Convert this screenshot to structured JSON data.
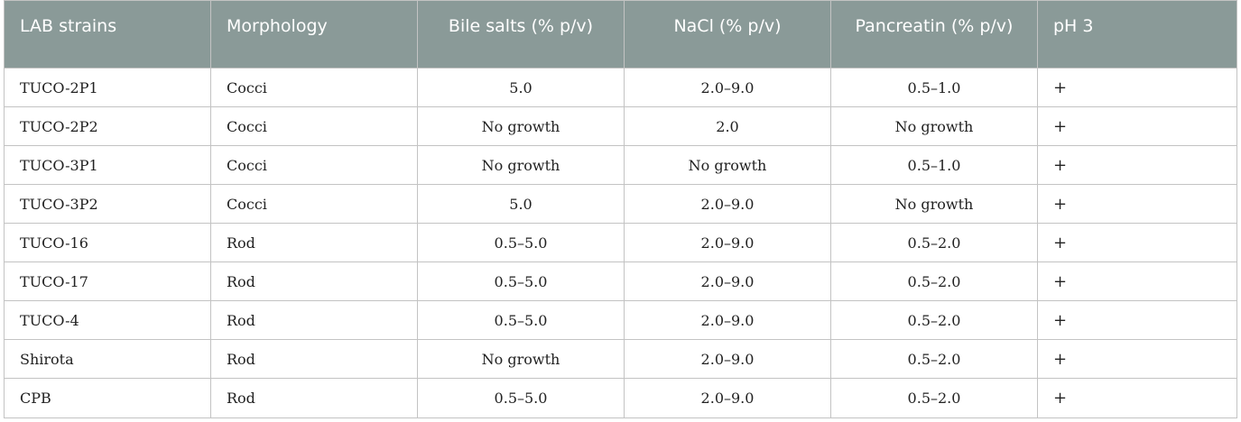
{
  "table": {
    "headers": [
      "LAB strains",
      "Morphology",
      "Bile salts (% p/v)",
      "NaCl (% p/v)",
      "Pancreatin (% p/v)",
      "pH 3"
    ],
    "rows": [
      [
        "TUCO-2P1",
        "Cocci",
        "5.0",
        "2.0–9.0",
        "0.5–1.0",
        "+"
      ],
      [
        "TUCO-2P2",
        "Cocci",
        "No growth",
        "2.0",
        "No growth",
        "+"
      ],
      [
        "TUCO-3P1",
        "Cocci",
        "No growth",
        "No growth",
        "0.5–1.0",
        "+"
      ],
      [
        "TUCO-3P2",
        "Cocci",
        "5.0",
        "2.0–9.0",
        "No growth",
        "+"
      ],
      [
        "TUCO-16",
        "Rod",
        "0.5–5.0",
        "2.0–9.0",
        "0.5–2.0",
        "+"
      ],
      [
        "TUCO-17",
        "Rod",
        "0.5–5.0",
        "2.0–9.0",
        "0.5–2.0",
        "+"
      ],
      [
        "TUCO-4",
        "Rod",
        "0.5–5.0",
        "2.0–9.0",
        "0.5–2.0",
        "+"
      ],
      [
        "Shirota",
        "Rod",
        "No growth",
        "2.0–9.0",
        "0.5–2.0",
        "+"
      ],
      [
        "CPB",
        "Rod",
        "0.5–5.0",
        "2.0–9.0",
        "0.5–2.0",
        "+"
      ]
    ]
  },
  "colors": {
    "header_background": "#8a9a98",
    "header_text": "#ffffff",
    "border": "#c3c3c3"
  }
}
